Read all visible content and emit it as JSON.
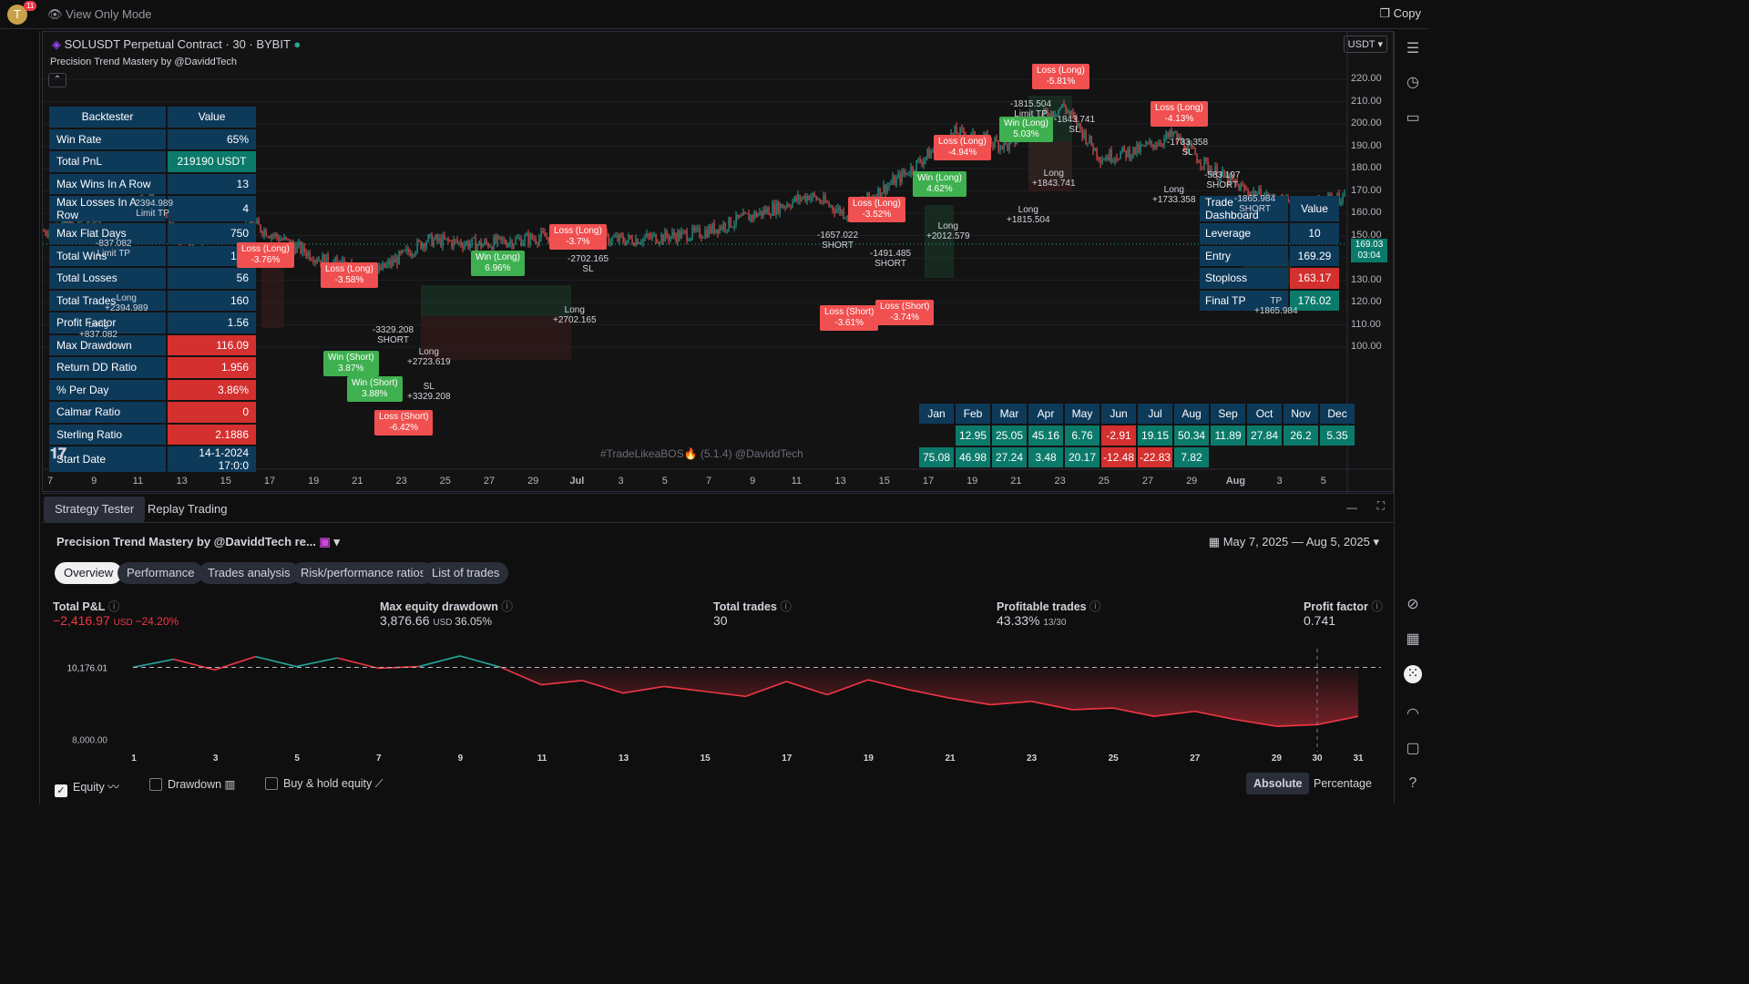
{
  "topbar": {
    "avatar_letter": "T",
    "avatar_badge": "11",
    "view_only": "View Only Mode",
    "copy": "Copy"
  },
  "chart": {
    "symbol": "SOLUSDT Perpetual Contract · 30 · BYBIT",
    "indicator": "Precision Trend Mastery by @DaviddTech",
    "currency": "USDT",
    "watermark": "#TradeLikeaBOS🔥 (5.1.4) @DaviddTech",
    "price_tag": {
      "price": "169.03",
      "time": "03:04"
    },
    "y_ticks": [
      "220.00",
      "210.00",
      "200.00",
      "190.00",
      "180.00",
      "170.00",
      "160.00",
      "150.00",
      "140.00",
      "130.00",
      "120.00",
      "110.00",
      "100.00"
    ],
    "x_ticks": [
      "7",
      "9",
      "11",
      "13",
      "15",
      "17",
      "19",
      "21",
      "23",
      "25",
      "27",
      "29",
      "Jul",
      "3",
      "5",
      "7",
      "9",
      "11",
      "13",
      "15",
      "17",
      "19",
      "21",
      "23",
      "25",
      "27",
      "29",
      "Aug",
      "3",
      "5"
    ],
    "accent_colors": {
      "up": "#26a69a",
      "down": "#ef5350",
      "win": "#3fb050",
      "loss": "#f05050",
      "table": "#0e3a5a",
      "teal": "#0b7a6b",
      "red": "#d3302f"
    }
  },
  "backtester": {
    "header": [
      "Backtester",
      "Value"
    ],
    "rows": [
      {
        "k": "Win Rate",
        "v": "65%",
        "c": "blue"
      },
      {
        "k": "Total PnL",
        "v": "219190 USDT",
        "c": "teal"
      },
      {
        "k": "Max Wins In A Row",
        "v": "13",
        "c": "blue"
      },
      {
        "k": "Max Losses In A Row",
        "v": "4",
        "c": "blue"
      },
      {
        "k": "Max Flat Days",
        "v": "750",
        "c": "blue"
      },
      {
        "k": "Total Wins",
        "v": "104",
        "c": "blue"
      },
      {
        "k": "Total Losses",
        "v": "56",
        "c": "blue"
      },
      {
        "k": "Total Trades",
        "v": "160",
        "c": "blue"
      },
      {
        "k": "Profit Factor",
        "v": "1.56",
        "c": "blue"
      },
      {
        "k": "Max Drawdown",
        "v": "116.09",
        "c": "red"
      },
      {
        "k": "Return DD Ratio",
        "v": "1.956",
        "c": "red"
      },
      {
        "k": "% Per Day",
        "v": "3.86%",
        "c": "red"
      },
      {
        "k": "Calmar Ratio",
        "v": "0",
        "c": "red"
      },
      {
        "k": "Sterling Ratio",
        "v": "2.1886",
        "c": "red"
      },
      {
        "k": "Start Date",
        "v": "14-1-2024 17:0:0",
        "c": "dark"
      }
    ]
  },
  "trade_dashboard": {
    "header": [
      "Trade Dashboard",
      "Value"
    ],
    "rows": [
      {
        "k": "Leverage",
        "v": "10",
        "c": ""
      },
      {
        "k": "Entry",
        "v": "169.29",
        "c": ""
      },
      {
        "k": "Stoploss",
        "v": "163.17",
        "c": "red"
      },
      {
        "k": "Final TP",
        "v": "176.02",
        "c": "teal"
      }
    ]
  },
  "monthly": {
    "months": [
      "Jan",
      "Feb",
      "Mar",
      "Apr",
      "May",
      "Jun",
      "Jul",
      "Aug",
      "Sep",
      "Oct",
      "Nov",
      "Dec"
    ],
    "row1": [
      "",
      "12.95",
      "25.05",
      "45.16",
      "6.76",
      "-2.91",
      "19.15",
      "50.34",
      "11.89",
      "27.84",
      "26.2",
      "5.35"
    ],
    "row2": [
      "75.08",
      "46.98",
      "27.24",
      "3.48",
      "20.17",
      "-12.48",
      "-22.83",
      "7.82",
      "",
      "",
      "",
      ""
    ]
  },
  "trade_labels": [
    {
      "t": "Loss (Long)\n-5.81%",
      "c": "red"
    },
    {
      "t": "Loss (Long)\n-4.13%",
      "c": "red"
    },
    {
      "t": "Loss (Long)\n-4.94%",
      "c": "red"
    },
    {
      "t": "Win (Long)\n5.03%",
      "c": "green"
    },
    {
      "t": "Win (Long)\n4.62%",
      "c": "green"
    },
    {
      "t": "Loss (Long)\n-3.52%",
      "c": "red"
    },
    {
      "t": "Loss (Long)\n-3.76%",
      "c": "red"
    },
    {
      "t": "Loss (Long)\n-3.58%",
      "c": "red"
    },
    {
      "t": "Win (Long)\n6.96%",
      "c": "green"
    },
    {
      "t": "Loss (Long)\n-3.7%",
      "c": "red"
    },
    {
      "t": "Loss (Short)\n-3.61%",
      "c": "red"
    },
    {
      "t": "Loss (Short)\n-3.74%",
      "c": "red"
    },
    {
      "t": "Win (Short)\n3.87%",
      "c": "green"
    },
    {
      "t": "Win (Short)\n3.88%",
      "c": "green"
    },
    {
      "t": "Loss (Short)\n-6.42%",
      "c": "red"
    }
  ],
  "price_texts": [
    "-1815.504\nLimit TP",
    "-1843.741\nSL",
    "-1733.358\nSL",
    "-583.197\nSHORT",
    "-1865.984\nSHORT",
    "-1657.022\nSHORT",
    "-1491.485\nSHORT",
    "Long\n+1815.504",
    "Long\n+1843.741",
    "Long\n+1733.358",
    "Long\n+2012.579",
    "TP\n+1865.984",
    "-2702.165\nSL",
    "Long\n+2702.165",
    "-3329.208\nSHORT",
    "Long\n+2723.619",
    "SL\n+3329.208",
    "-2394.989\nLimit TP",
    "-837.082\nLimit TP",
    "Long\n+2394.989",
    "Long\n+837.082"
  ],
  "bottom": {
    "tabs": [
      "Strategy Tester",
      "Replay Trading"
    ],
    "strategy": "Precision Trend Mastery by @DaviddTech  re...",
    "date_range": "May 7, 2025 — Aug 5, 2025",
    "subtabs": [
      "Overview",
      "Performance",
      "Trades analysis",
      "Risk/performance ratios",
      "List of trades"
    ],
    "metrics": [
      {
        "label": "Total P&L",
        "value": "−2,416.97",
        "unit": "USD",
        "extra": "−24.20%",
        "neg": true
      },
      {
        "label": "Max equity drawdown",
        "value": "3,876.66",
        "unit": "USD",
        "extra": "36.05%",
        "neg": false
      },
      {
        "label": "Total trades",
        "value": "30",
        "unit": "",
        "extra": "",
        "neg": false
      },
      {
        "label": "Profitable trades",
        "value": "43.33%",
        "unit": "13/30",
        "extra": "",
        "neg": false
      },
      {
        "label": "Profit factor",
        "value": "0.741",
        "unit": "",
        "extra": "",
        "neg": false
      }
    ],
    "equity_levels": [
      "10,176.01",
      "8,000.00"
    ],
    "equity_x": [
      "1",
      "3",
      "5",
      "7",
      "9",
      "11",
      "13",
      "15",
      "17",
      "19",
      "21",
      "23",
      "25",
      "27",
      "29",
      "30",
      "31"
    ],
    "checks": [
      {
        "label": "Equity",
        "on": true
      },
      {
        "label": "Drawdown",
        "on": false
      },
      {
        "label": "Buy & hold equity",
        "on": false
      }
    ],
    "toggles": [
      "Absolute",
      "Percentage"
    ]
  },
  "chart_data": {
    "type": "line",
    "series": [
      {
        "values": [
          10176,
          10420,
          10100,
          10500,
          10200,
          10460,
          10150,
          10200,
          10520,
          10180,
          9650,
          9780,
          9400,
          9600,
          9450,
          9300,
          9750,
          9350,
          9800,
          9500,
          9250,
          9050,
          9150,
          8900,
          8950,
          8700,
          8850,
          8600,
          8400,
          8450,
          8700
        ]
      }
    ],
    "baseline": 10176
  }
}
